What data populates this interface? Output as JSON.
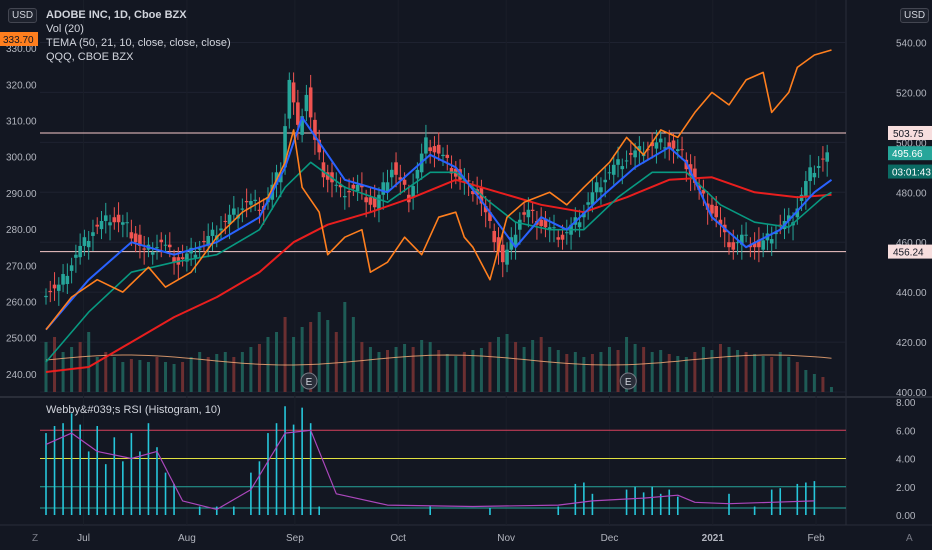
{
  "header": {
    "title": "ADOBE INC, 1D, Cboe BZX",
    "vol": "Vol (20)",
    "tema": "TEMA (50, 21, 10, close, close, close)",
    "compare": "QQQ, CBOE BZX",
    "currency_left": "USD",
    "currency_right": "USD"
  },
  "rsi_title": "Webby&#039;s RSI (Histogram, 10)",
  "corner_left": "Z",
  "corner_right": "A",
  "colors": {
    "background": "#131722",
    "up": "#26a69a",
    "down": "#ef5350",
    "tema_fast": "#2962ff",
    "tema_mid": "#089981",
    "tema_slow": "#e91e1e",
    "qqq": "#ff7f1e",
    "vol_ma": "#ffb07a",
    "rsi_hist": "#26c6da",
    "rsi_line": "#ab47bc"
  },
  "chart_data": {
    "type": "candlestick",
    "x_ticks": [
      "Jul",
      "Aug",
      "Sep",
      "Oct",
      "Nov",
      "Dec",
      "2021",
      "Feb"
    ],
    "left_axis_ticks": [
      "330.00",
      "320.00",
      "310.00",
      "300.00",
      "290.00",
      "280.00",
      "270.00",
      "260.00",
      "250.00",
      "240.00"
    ],
    "right_axis_ticks": [
      "540.00",
      "520.00",
      "500.00",
      "480.00",
      "460.00",
      "440.00",
      "420.00",
      "400.00"
    ],
    "ylim_left": [
      235,
      335
    ],
    "ylim_right": [
      400,
      545
    ],
    "horizontal_lines": [
      {
        "label": "503.75",
        "value": 503.75
      },
      {
        "label": "456.24",
        "value": 456.24
      }
    ],
    "price_labels": [
      {
        "label": "333.70",
        "side": "left",
        "value": 333.7
      },
      {
        "label": "495.66",
        "side": "right",
        "value": 495.66
      },
      {
        "label": "03:01:43",
        "side": "right",
        "value": 488.3
      }
    ],
    "earnings_markers": [
      "E",
      "E"
    ],
    "earnings_dates": [
      "Sep",
      "Dec"
    ],
    "adbe_close": [
      [
        0,
        440
      ],
      [
        4,
        442
      ],
      [
        8,
        455
      ],
      [
        12,
        465
      ],
      [
        16,
        470
      ],
      [
        20,
        466
      ],
      [
        24,
        456
      ],
      [
        28,
        460
      ],
      [
        32,
        452
      ],
      [
        36,
        457
      ],
      [
        40,
        463
      ],
      [
        44,
        470
      ],
      [
        48,
        476
      ],
      [
        52,
        474
      ],
      [
        56,
        490
      ],
      [
        58,
        525
      ],
      [
        60,
        505
      ],
      [
        62,
        520
      ],
      [
        64,
        500
      ],
      [
        66,
        488
      ],
      [
        70,
        480
      ],
      [
        74,
        482
      ],
      [
        78,
        474
      ],
      [
        82,
        490
      ],
      [
        86,
        478
      ],
      [
        90,
        500
      ],
      [
        94,
        494
      ],
      [
        98,
        485
      ],
      [
        102,
        480
      ],
      [
        106,
        462
      ],
      [
        108,
        452
      ],
      [
        110,
        460
      ],
      [
        112,
        470
      ],
      [
        114,
        472
      ],
      [
        118,
        466
      ],
      [
        122,
        462
      ],
      [
        126,
        470
      ],
      [
        130,
        482
      ],
      [
        134,
        490
      ],
      [
        138,
        495
      ],
      [
        142,
        498
      ],
      [
        146,
        500
      ],
      [
        150,
        495
      ],
      [
        154,
        480
      ],
      [
        158,
        470
      ],
      [
        160,
        462
      ],
      [
        162,
        458
      ],
      [
        164,
        462
      ],
      [
        168,
        458
      ],
      [
        172,
        465
      ],
      [
        176,
        470
      ],
      [
        180,
        488
      ],
      [
        184,
        495
      ]
    ],
    "tema_fast": [
      [
        0,
        425
      ],
      [
        10,
        445
      ],
      [
        20,
        460
      ],
      [
        30,
        455
      ],
      [
        40,
        460
      ],
      [
        50,
        470
      ],
      [
        56,
        490
      ],
      [
        60,
        510
      ],
      [
        64,
        500
      ],
      [
        70,
        485
      ],
      [
        80,
        480
      ],
      [
        90,
        495
      ],
      [
        96,
        490
      ],
      [
        104,
        472
      ],
      [
        110,
        458
      ],
      [
        116,
        470
      ],
      [
        122,
        465
      ],
      [
        130,
        478
      ],
      [
        138,
        490
      ],
      [
        146,
        498
      ],
      [
        150,
        492
      ],
      [
        156,
        470
      ],
      [
        164,
        458
      ],
      [
        172,
        465
      ],
      [
        180,
        480
      ],
      [
        184,
        485
      ]
    ],
    "tema_mid": [
      [
        0,
        412
      ],
      [
        10,
        432
      ],
      [
        20,
        448
      ],
      [
        30,
        452
      ],
      [
        40,
        455
      ],
      [
        50,
        465
      ],
      [
        56,
        482
      ],
      [
        62,
        492
      ],
      [
        70,
        482
      ],
      [
        80,
        476
      ],
      [
        90,
        488
      ],
      [
        96,
        488
      ],
      [
        104,
        476
      ],
      [
        110,
        468
      ],
      [
        118,
        465
      ],
      [
        126,
        465
      ],
      [
        134,
        478
      ],
      [
        142,
        488
      ],
      [
        150,
        488
      ],
      [
        158,
        475
      ],
      [
        166,
        468
      ],
      [
        174,
        466
      ],
      [
        182,
        478
      ],
      [
        184,
        480
      ]
    ],
    "tema_slow": [
      [
        0,
        408
      ],
      [
        10,
        410
      ],
      [
        20,
        420
      ],
      [
        30,
        430
      ],
      [
        40,
        438
      ],
      [
        50,
        448
      ],
      [
        58,
        460
      ],
      [
        66,
        467
      ],
      [
        76,
        472
      ],
      [
        86,
        478
      ],
      [
        96,
        485
      ],
      [
        106,
        480
      ],
      [
        116,
        475
      ],
      [
        126,
        472
      ],
      [
        136,
        478
      ],
      [
        146,
        485
      ],
      [
        156,
        486
      ],
      [
        166,
        480
      ],
      [
        176,
        478
      ],
      [
        184,
        479
      ]
    ],
    "qqq": [
      [
        0,
        425
      ],
      [
        6,
        438
      ],
      [
        12,
        445
      ],
      [
        18,
        440
      ],
      [
        24,
        450
      ],
      [
        28,
        442
      ],
      [
        34,
        448
      ],
      [
        40,
        462
      ],
      [
        46,
        472
      ],
      [
        52,
        478
      ],
      [
        56,
        492
      ],
      [
        58,
        505
      ],
      [
        60,
        482
      ],
      [
        64,
        472
      ],
      [
        66,
        455
      ],
      [
        70,
        462
      ],
      [
        74,
        465
      ],
      [
        76,
        448
      ],
      [
        80,
        452
      ],
      [
        84,
        462
      ],
      [
        88,
        455
      ],
      [
        92,
        470
      ],
      [
        96,
        472
      ],
      [
        98,
        462
      ],
      [
        100,
        458
      ],
      [
        104,
        445
      ],
      [
        108,
        470
      ],
      [
        112,
        476
      ],
      [
        118,
        480
      ],
      [
        122,
        475
      ],
      [
        126,
        482
      ],
      [
        132,
        492
      ],
      [
        136,
        502
      ],
      [
        140,
        495
      ],
      [
        144,
        505
      ],
      [
        148,
        502
      ],
      [
        152,
        512
      ],
      [
        156,
        520
      ],
      [
        160,
        515
      ],
      [
        164,
        525
      ],
      [
        168,
        528
      ],
      [
        170,
        512
      ],
      [
        174,
        520
      ],
      [
        176,
        530
      ],
      [
        180,
        535
      ],
      [
        184,
        537
      ]
    ],
    "volume": [
      [
        0,
        0.5
      ],
      [
        2,
        0.55
      ],
      [
        4,
        0.4
      ],
      [
        6,
        0.45
      ],
      [
        8,
        0.5
      ],
      [
        10,
        0.6
      ],
      [
        12,
        0.35
      ],
      [
        14,
        0.4
      ],
      [
        16,
        0.35
      ],
      [
        18,
        0.3
      ],
      [
        20,
        0.33
      ],
      [
        22,
        0.32
      ],
      [
        24,
        0.3
      ],
      [
        26,
        0.35
      ],
      [
        28,
        0.3
      ],
      [
        30,
        0.28
      ],
      [
        32,
        0.3
      ],
      [
        34,
        0.35
      ],
      [
        36,
        0.4
      ],
      [
        38,
        0.35
      ],
      [
        40,
        0.38
      ],
      [
        42,
        0.4
      ],
      [
        44,
        0.35
      ],
      [
        46,
        0.4
      ],
      [
        48,
        0.45
      ],
      [
        50,
        0.48
      ],
      [
        52,
        0.55
      ],
      [
        54,
        0.6
      ],
      [
        56,
        0.75
      ],
      [
        58,
        0.55
      ],
      [
        60,
        0.65
      ],
      [
        62,
        0.7
      ],
      [
        64,
        0.8
      ],
      [
        66,
        0.72
      ],
      [
        68,
        0.6
      ],
      [
        70,
        0.9
      ],
      [
        72,
        0.75
      ],
      [
        74,
        0.5
      ],
      [
        76,
        0.45
      ],
      [
        78,
        0.4
      ],
      [
        80,
        0.42
      ],
      [
        82,
        0.45
      ],
      [
        84,
        0.48
      ],
      [
        86,
        0.45
      ],
      [
        88,
        0.52
      ],
      [
        90,
        0.5
      ],
      [
        92,
        0.42
      ],
      [
        94,
        0.38
      ],
      [
        96,
        0.36
      ],
      [
        98,
        0.4
      ],
      [
        100,
        0.42
      ],
      [
        102,
        0.44
      ],
      [
        104,
        0.5
      ],
      [
        106,
        0.55
      ],
      [
        108,
        0.58
      ],
      [
        110,
        0.5
      ],
      [
        112,
        0.45
      ],
      [
        114,
        0.52
      ],
      [
        116,
        0.55
      ],
      [
        118,
        0.45
      ],
      [
        120,
        0.42
      ],
      [
        122,
        0.38
      ],
      [
        124,
        0.4
      ],
      [
        126,
        0.35
      ],
      [
        128,
        0.38
      ],
      [
        130,
        0.4
      ],
      [
        132,
        0.45
      ],
      [
        134,
        0.42
      ],
      [
        136,
        0.55
      ],
      [
        138,
        0.48
      ],
      [
        140,
        0.45
      ],
      [
        142,
        0.4
      ],
      [
        144,
        0.42
      ],
      [
        146,
        0.38
      ],
      [
        148,
        0.36
      ],
      [
        150,
        0.35
      ],
      [
        152,
        0.4
      ],
      [
        154,
        0.45
      ],
      [
        156,
        0.42
      ],
      [
        158,
        0.48
      ],
      [
        160,
        0.45
      ],
      [
        162,
        0.42
      ],
      [
        164,
        0.4
      ],
      [
        166,
        0.38
      ],
      [
        168,
        0.36
      ],
      [
        170,
        0.35
      ],
      [
        172,
        0.4
      ],
      [
        174,
        0.35
      ],
      [
        176,
        0.3
      ],
      [
        178,
        0.22
      ],
      [
        180,
        0.18
      ],
      [
        182,
        0.15
      ],
      [
        184,
        0.05
      ]
    ],
    "rsi_axis_ticks": [
      "8.00",
      "6.00",
      "4.00",
      "2.00",
      "0.00"
    ],
    "rsi_ylim": [
      0,
      8
    ],
    "rsi_levels": [
      6,
      4,
      2,
      0.5
    ],
    "rsi_hist": [
      [
        0,
        5.8
      ],
      [
        2,
        6.3
      ],
      [
        4,
        6.5
      ],
      [
        6,
        7.2
      ],
      [
        8,
        6.4
      ],
      [
        10,
        4.5
      ],
      [
        12,
        6.3
      ],
      [
        14,
        3.6
      ],
      [
        16,
        5.5
      ],
      [
        18,
        3.8
      ],
      [
        20,
        5.8
      ],
      [
        22,
        4.5
      ],
      [
        24,
        6.5
      ],
      [
        26,
        4.8
      ],
      [
        28,
        3.0
      ],
      [
        30,
        2.2
      ],
      [
        36,
        0.6
      ],
      [
        40,
        0.6
      ],
      [
        44,
        0.6
      ],
      [
        48,
        3.0
      ],
      [
        50,
        3.8
      ],
      [
        52,
        5.8
      ],
      [
        54,
        6.5
      ],
      [
        56,
        7.7
      ],
      [
        58,
        6.4
      ],
      [
        60,
        7.6
      ],
      [
        62,
        6.5
      ],
      [
        64,
        0.6
      ],
      [
        90,
        0.6
      ],
      [
        104,
        0.5
      ],
      [
        120,
        0.6
      ],
      [
        124,
        2.2
      ],
      [
        126,
        2.3
      ],
      [
        128,
        1.5
      ],
      [
        136,
        1.8
      ],
      [
        138,
        2.0
      ],
      [
        140,
        1.6
      ],
      [
        142,
        2.0
      ],
      [
        144,
        1.5
      ],
      [
        146,
        1.8
      ],
      [
        148,
        1.3
      ],
      [
        160,
        1.5
      ],
      [
        166,
        0.6
      ],
      [
        170,
        1.8
      ],
      [
        172,
        1.9
      ],
      [
        176,
        2.2
      ],
      [
        178,
        2.3
      ],
      [
        180,
        2.4
      ]
    ],
    "rsi_line": [
      [
        0,
        5.0
      ],
      [
        6,
        5.8
      ],
      [
        12,
        4.5
      ],
      [
        20,
        4.0
      ],
      [
        26,
        4.5
      ],
      [
        32,
        1.0
      ],
      [
        40,
        0.4
      ],
      [
        48,
        1.8
      ],
      [
        56,
        5.8
      ],
      [
        62,
        6.0
      ],
      [
        68,
        1.5
      ],
      [
        80,
        0.7
      ],
      [
        100,
        0.6
      ],
      [
        120,
        0.7
      ],
      [
        128,
        1.0
      ],
      [
        140,
        1.2
      ],
      [
        148,
        1.4
      ],
      [
        152,
        0.9
      ],
      [
        160,
        0.8
      ],
      [
        170,
        0.9
      ],
      [
        180,
        1.0
      ]
    ]
  }
}
